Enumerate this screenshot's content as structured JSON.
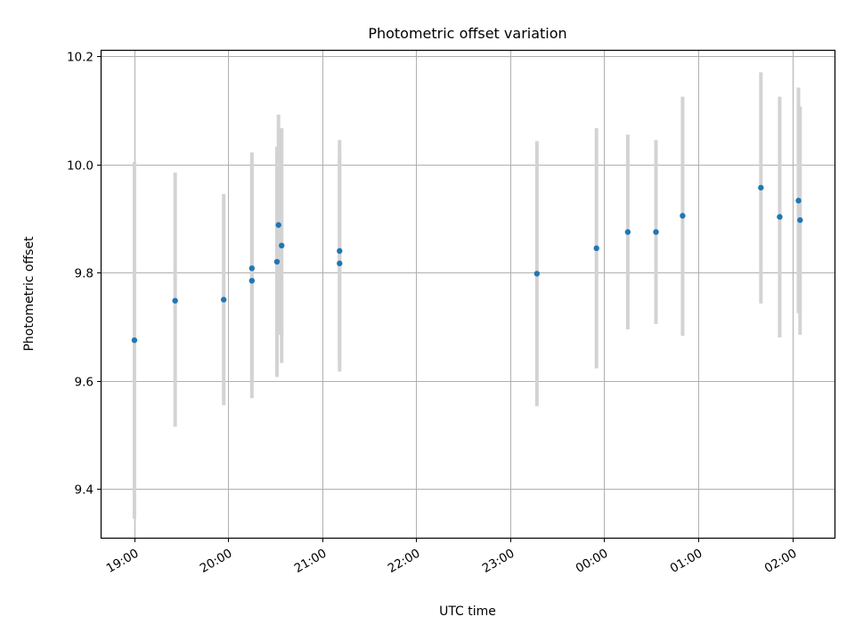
{
  "chart_data": {
    "type": "scatter",
    "title": "Photometric offset variation",
    "xlabel": "UTC time",
    "ylabel": "Photometric offset",
    "x_axis": "time (UTC), day 1 19:00 to day 2 02:00",
    "x_ticks": [
      "19:00",
      "20:00",
      "21:00",
      "22:00",
      "23:00",
      "00:00",
      "01:00",
      "02:00"
    ],
    "x_range": [
      "18:39",
      "02:27"
    ],
    "y_ticks": [
      "9.4",
      "9.6",
      "9.8",
      "10.0",
      "10.2"
    ],
    "ylim": [
      9.31,
      10.21
    ],
    "grid": true,
    "marker_color": "#1f77b4",
    "errorbar_color": "#d3d3d3",
    "points": [
      {
        "time": "19:00",
        "y": 9.675,
        "err_lo": 9.345,
        "err_hi": 10.005
      },
      {
        "time": "19:26",
        "y": 9.748,
        "err_lo": 9.515,
        "err_hi": 9.985
      },
      {
        "time": "19:57",
        "y": 9.75,
        "err_lo": 9.555,
        "err_hi": 9.945
      },
      {
        "time": "20:15",
        "y": 9.808,
        "err_lo": 9.595,
        "err_hi": 10.022
      },
      {
        "time": "20:15",
        "y": 9.785,
        "err_lo": 9.568,
        "err_hi": 10.002
      },
      {
        "time": "20:31",
        "y": 9.82,
        "err_lo": 9.607,
        "err_hi": 10.033
      },
      {
        "time": "20:32",
        "y": 9.888,
        "err_lo": 9.685,
        "err_hi": 10.092
      },
      {
        "time": "20:34",
        "y": 9.85,
        "err_lo": 9.633,
        "err_hi": 10.067
      },
      {
        "time": "21:11",
        "y": 9.84,
        "err_lo": 9.638,
        "err_hi": 10.045
      },
      {
        "time": "21:11",
        "y": 9.817,
        "err_lo": 9.617,
        "err_hi": 10.017
      },
      {
        "time": "23:17",
        "y": 9.798,
        "err_lo": 9.553,
        "err_hi": 10.043
      },
      {
        "time": "23:55",
        "y": 9.845,
        "err_lo": 9.623,
        "err_hi": 10.067
      },
      {
        "time": "00:15",
        "y": 9.875,
        "err_lo": 9.695,
        "err_hi": 10.055
      },
      {
        "time": "00:33",
        "y": 9.875,
        "err_lo": 9.705,
        "err_hi": 10.045
      },
      {
        "time": "00:50",
        "y": 9.905,
        "err_lo": 9.683,
        "err_hi": 10.125
      },
      {
        "time": "01:40",
        "y": 9.957,
        "err_lo": 9.743,
        "err_hi": 10.17
      },
      {
        "time": "01:52",
        "y": 9.903,
        "err_lo": 9.68,
        "err_hi": 10.125
      },
      {
        "time": "02:04",
        "y": 9.933,
        "err_lo": 9.725,
        "err_hi": 10.142
      },
      {
        "time": "02:05",
        "y": 9.897,
        "err_lo": 9.685,
        "err_hi": 10.107
      }
    ]
  }
}
